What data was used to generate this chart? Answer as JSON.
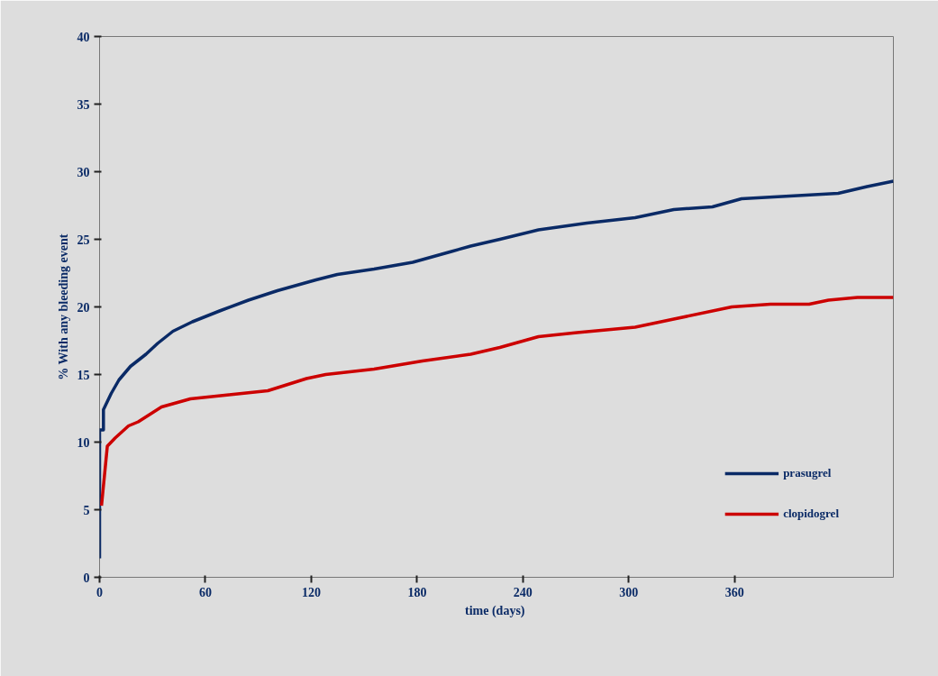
{
  "chart_data": {
    "type": "line",
    "xlabel": "time  (days)",
    "ylabel": "% With any bleeding event",
    "xlim": [
      0,
      450
    ],
    "xticks": [
      0,
      60,
      120,
      180,
      240,
      300,
      360
    ],
    "ylim": [
      0,
      40
    ],
    "yticks": [
      0,
      5,
      10,
      15,
      20,
      25,
      30,
      35,
      40
    ],
    "grid": false,
    "legend": "bottom right",
    "line_style": "solid",
    "marker": "none",
    "series": [
      {
        "name": "prasugrel",
        "color": "#0a2a66",
        "x": [
          0,
          0,
          2.2,
          2.2,
          6.6,
          11,
          17.5,
          26.3,
          32.9,
          41.6,
          52.6,
          68,
          84.4,
          100.8,
          122.7,
          134.8,
          155.6,
          177.5,
          199.5,
          210.4,
          226.9,
          248.8,
          276.2,
          303.6,
          325.5,
          347.4,
          363.9,
          391.3,
          418.7,
          435.1,
          450
        ],
        "values": [
          1.4,
          10.9,
          10.9,
          12.4,
          13.6,
          14.6,
          15.6,
          16.5,
          17.3,
          18.2,
          18.9,
          19.7,
          20.5,
          21.2,
          22.0,
          22.4,
          22.8,
          23.3,
          24.1,
          24.5,
          25.0,
          25.7,
          26.2,
          26.6,
          27.2,
          27.4,
          28.0,
          28.2,
          28.4,
          28.9,
          29.3
        ]
      },
      {
        "name": "clopidogrel",
        "color": "#cc0000",
        "x": [
          1.1,
          4.4,
          8.8,
          16.4,
          21.9,
          35.1,
          51.5,
          73.4,
          95.4,
          117.3,
          128.2,
          155.6,
          183,
          210.4,
          226.9,
          248.8,
          270.7,
          303.6,
          325.5,
          358.4,
          380.3,
          402.2,
          413.2,
          429.6,
          450
        ],
        "values": [
          5.3,
          9.7,
          10.3,
          11.2,
          11.5,
          12.6,
          13.2,
          13.5,
          13.8,
          14.7,
          15.0,
          15.4,
          16.0,
          16.5,
          17.0,
          17.8,
          18.1,
          18.5,
          19.1,
          20.0,
          20.2,
          20.2,
          20.5,
          20.7,
          20.7
        ]
      }
    ]
  }
}
